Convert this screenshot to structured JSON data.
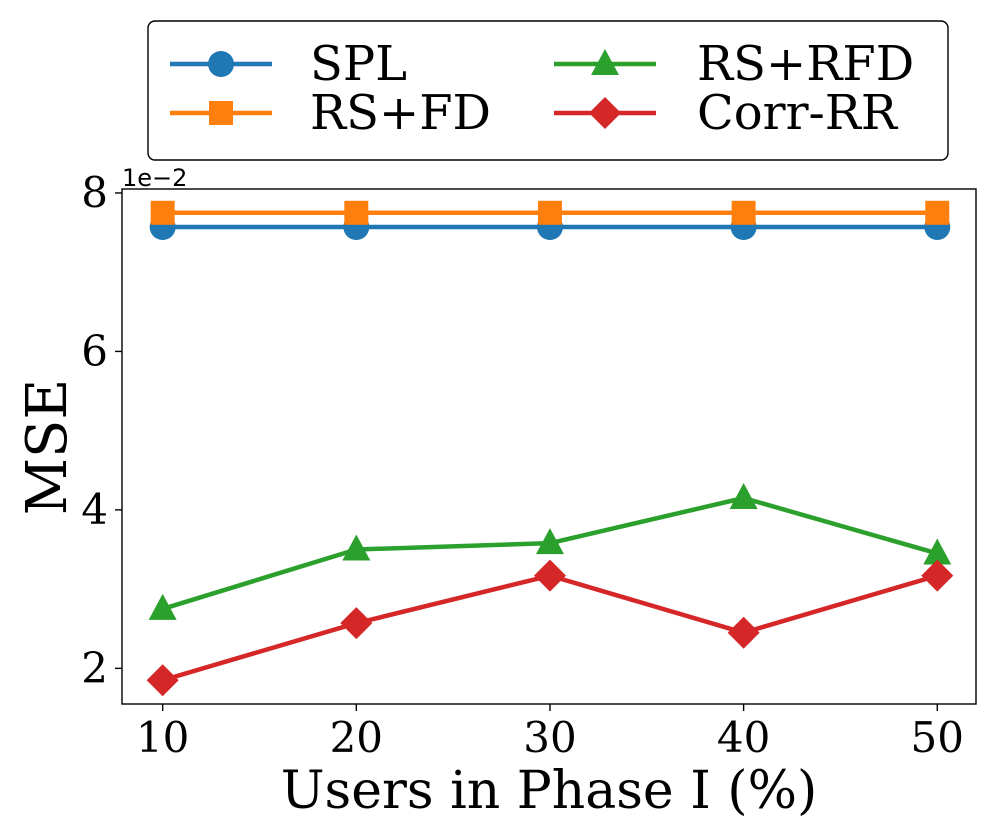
{
  "chart_data": {
    "type": "line",
    "xlabel": "Users in Phase I (%)",
    "ylabel": "MSE",
    "offset_text": "1e−2",
    "x": [
      10,
      20,
      30,
      40,
      50
    ],
    "xticks": [
      "10",
      "20",
      "30",
      "40",
      "50"
    ],
    "yticks": [
      "2",
      "4",
      "6",
      "8"
    ],
    "ytick_values": [
      2,
      4,
      6,
      8
    ],
    "xlim": [
      7.9,
      52
    ],
    "ylim": [
      1.55,
      8.05
    ],
    "grid": false,
    "legend_position": "top",
    "series": [
      {
        "name": "SPL",
        "color": "#1f77b4",
        "marker": "circle",
        "values": [
          7.57,
          7.57,
          7.57,
          7.57,
          7.57
        ]
      },
      {
        "name": "RS+FD",
        "color": "#ff7f0e",
        "marker": "square",
        "values": [
          7.75,
          7.75,
          7.75,
          7.75,
          7.75
        ]
      },
      {
        "name": "RS+RFD",
        "color": "#2ca02c",
        "marker": "triangle",
        "values": [
          2.75,
          3.5,
          3.58,
          4.15,
          3.45
        ]
      },
      {
        "name": "Corr-RR",
        "color": "#d62728",
        "marker": "diamond",
        "values": [
          1.85,
          2.57,
          3.17,
          2.45,
          3.17
        ]
      }
    ]
  }
}
